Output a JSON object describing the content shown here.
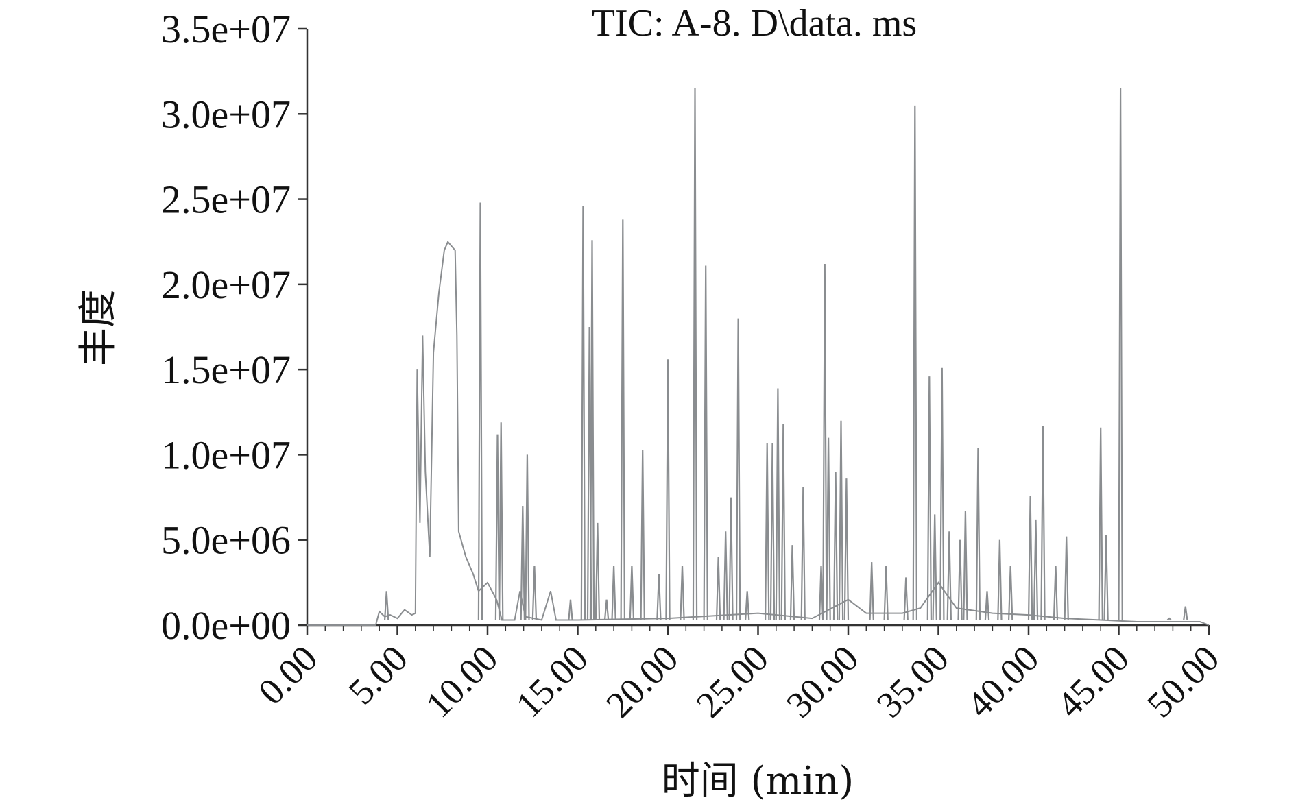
{
  "chart_data": {
    "type": "line",
    "title": "TIC: A-8. D\\data. ms",
    "xlabel": "时间 (min)",
    "ylabel": "丰度",
    "xlim": [
      0,
      50
    ],
    "ylim": [
      0,
      35000000
    ],
    "x_ticks": [
      "0.00",
      "5.00",
      "10.00",
      "15.00",
      "20.00",
      "25.00",
      "30.00",
      "35.00",
      "40.00",
      "45.00",
      "50.00"
    ],
    "y_ticks": [
      "0.0e+00",
      "5.0e+06",
      "1.0e+07",
      "1.5e+07",
      "2.0e+07",
      "2.5e+07",
      "3.0e+07",
      "3.5e+07"
    ],
    "grid": false,
    "legend": "none",
    "series": [
      {
        "color": "#8a8d90",
        "baseline": [
          [
            0,
            0
          ],
          [
            3.8,
            0
          ],
          [
            4.0,
            800000
          ],
          [
            4.3,
            500000
          ],
          [
            4.6,
            600000
          ],
          [
            5.0,
            400000
          ],
          [
            5.4,
            900000
          ],
          [
            5.8,
            600000
          ],
          [
            6.0,
            700000
          ],
          [
            6.1,
            15000000
          ],
          [
            6.25,
            6000000
          ],
          [
            6.4,
            17000000
          ],
          [
            6.55,
            9000000
          ],
          [
            6.8,
            4000000
          ],
          [
            7.0,
            16000000
          ],
          [
            7.3,
            19500000
          ],
          [
            7.6,
            22000000
          ],
          [
            7.8,
            22500000
          ],
          [
            8.2,
            22000000
          ],
          [
            8.3,
            17000000
          ],
          [
            8.4,
            5500000
          ],
          [
            8.8,
            4000000
          ],
          [
            9.2,
            3000000
          ],
          [
            9.5,
            2000000
          ],
          [
            10.0,
            2500000
          ],
          [
            10.5,
            1500000
          ],
          [
            10.8,
            300000
          ],
          [
            11.5,
            300000
          ],
          [
            11.8,
            2000000
          ],
          [
            12.1,
            500000
          ],
          [
            13.0,
            300000
          ],
          [
            13.5,
            2000000
          ],
          [
            13.8,
            300000
          ],
          [
            15.0,
            300000
          ],
          [
            20.0,
            400000
          ],
          [
            25.0,
            700000
          ],
          [
            28.0,
            400000
          ],
          [
            30.0,
            1500000
          ],
          [
            31.0,
            700000
          ],
          [
            33.0,
            700000
          ],
          [
            34.0,
            1000000
          ],
          [
            35.0,
            2500000
          ],
          [
            36.0,
            1000000
          ],
          [
            38.0,
            700000
          ],
          [
            40.0,
            600000
          ],
          [
            42.0,
            400000
          ],
          [
            44.0,
            300000
          ],
          [
            46.0,
            200000
          ],
          [
            48.0,
            200000
          ],
          [
            49.5,
            200000
          ],
          [
            50.0,
            0
          ]
        ],
        "peaks": [
          [
            4.4,
            2000000
          ],
          [
            9.6,
            24800000
          ],
          [
            10.55,
            11200000
          ],
          [
            10.75,
            11900000
          ],
          [
            11.95,
            7000000
          ],
          [
            12.2,
            10000000
          ],
          [
            12.6,
            3500000
          ],
          [
            14.6,
            1500000
          ],
          [
            15.3,
            24600000
          ],
          [
            15.65,
            17500000
          ],
          [
            15.8,
            22600000
          ],
          [
            16.1,
            6000000
          ],
          [
            16.6,
            1500000
          ],
          [
            17.0,
            3500000
          ],
          [
            17.5,
            23800000
          ],
          [
            18.0,
            3500000
          ],
          [
            18.6,
            10300000
          ],
          [
            19.5,
            3000000
          ],
          [
            20.0,
            15600000
          ],
          [
            20.8,
            3500000
          ],
          [
            21.5,
            31500000
          ],
          [
            22.1,
            21100000
          ],
          [
            22.8,
            4000000
          ],
          [
            23.2,
            5500000
          ],
          [
            23.5,
            7500000
          ],
          [
            23.9,
            18000000
          ],
          [
            24.4,
            2000000
          ],
          [
            25.5,
            10700000
          ],
          [
            25.8,
            10700000
          ],
          [
            26.1,
            13900000
          ],
          [
            26.4,
            11800000
          ],
          [
            26.9,
            4700000
          ],
          [
            27.5,
            8100000
          ],
          [
            28.5,
            3500000
          ],
          [
            28.7,
            21200000
          ],
          [
            28.9,
            11000000
          ],
          [
            29.3,
            9000000
          ],
          [
            29.6,
            12000000
          ],
          [
            29.9,
            8600000
          ],
          [
            31.3,
            3700000
          ],
          [
            32.1,
            3500000
          ],
          [
            33.2,
            2800000
          ],
          [
            33.7,
            30500000
          ],
          [
            34.5,
            14600000
          ],
          [
            34.8,
            6500000
          ],
          [
            35.2,
            15100000
          ],
          [
            35.6,
            5500000
          ],
          [
            36.2,
            5000000
          ],
          [
            36.5,
            6700000
          ],
          [
            37.2,
            10400000
          ],
          [
            37.7,
            2000000
          ],
          [
            38.4,
            5000000
          ],
          [
            39.0,
            3500000
          ],
          [
            40.1,
            7600000
          ],
          [
            40.4,
            6200000
          ],
          [
            40.8,
            11700000
          ],
          [
            41.5,
            3500000
          ],
          [
            42.1,
            5200000
          ],
          [
            44.0,
            11600000
          ],
          [
            44.3,
            5300000
          ],
          [
            45.1,
            31500000
          ],
          [
            47.8,
            400000
          ],
          [
            48.7,
            1100000
          ]
        ]
      }
    ]
  }
}
